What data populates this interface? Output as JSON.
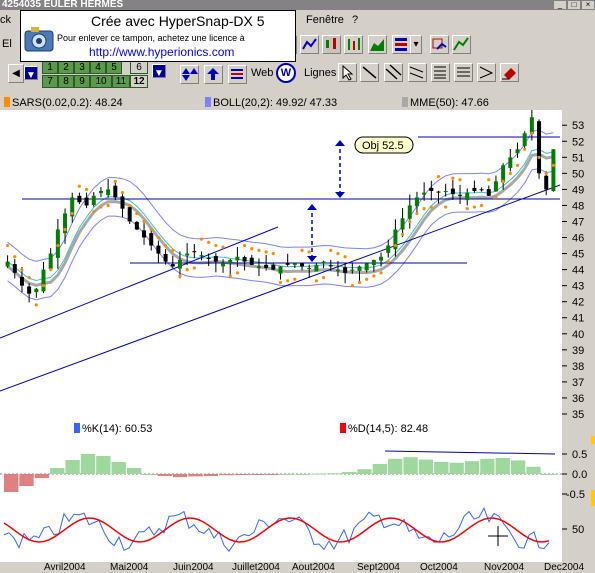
{
  "window": {
    "title": "4254035 EULER HERMES"
  },
  "menu": {
    "items": [
      "Fenêtre",
      "?"
    ],
    "left_fragment": "ck"
  },
  "watermark": {
    "line1": "Crée avec HyperSnap-DX 5",
    "line2": "Pour enlever ce tampon, achetez une licence à",
    "line3": "http://www.hyperionics.com"
  },
  "toolbar": {
    "numbers_top": [
      "1",
      "2",
      "3",
      "4",
      "5",
      "6"
    ],
    "numbers_bottom": [
      "7",
      "8",
      "9",
      "10",
      "11",
      "12"
    ],
    "web_label": "Web",
    "lignes_label": "Lignes",
    "left_fragment": "El"
  },
  "legends": {
    "sar": "SARS(0.02,0.2): 48.24",
    "boll": "BOLL(20,2): 49.92/ 47.33",
    "mme": "MME(50): 47.66",
    "k": "%K(14): 60.53",
    "d": "%D(14,5): 82.48"
  },
  "colors": {
    "sar": "#ff8c00",
    "boll": "#8080ff",
    "mme": "#a8a8a8",
    "k": "#3366ff",
    "d": "#ff0000",
    "candle_green": "#008000",
    "trend": "#0000c0"
  },
  "chart_data": {
    "type": "candlestick",
    "yticks": [
      "53",
      "52",
      "51",
      "50",
      "49",
      "48",
      "47",
      "46",
      "45",
      "44",
      "43",
      "42",
      "41",
      "40",
      "39",
      "38",
      "37",
      "36",
      "35"
    ],
    "ylim": [
      34.5,
      53.7
    ],
    "months": [
      "Avril2004",
      "Mai2004",
      "Juin2004",
      "Juillet2004",
      "Aout2004",
      "Sept2004",
      "Oct2004",
      "Nov2004",
      "Dec2004"
    ],
    "annotation": "Obj 52.5",
    "close": [
      44.5,
      43.8,
      43,
      42.5,
      42.8,
      44,
      45,
      46.5,
      47.5,
      48.5,
      48.2,
      48,
      48.6,
      48.9,
      49,
      48.5,
      47.8,
      47,
      46.5,
      46,
      45.5,
      45,
      44.5,
      44.2,
      44.6,
      45,
      45.1,
      44.9,
      44.7,
      44.5,
      44.4,
      44.6,
      44.8,
      44.5,
      44.3,
      44.2,
      44.1,
      44,
      44.2,
      44.3,
      44.4,
      44.2,
      44.1,
      44.3,
      44.5,
      44.2,
      44,
      43.8,
      44,
      44.2,
      44.4,
      44.6,
      44.8,
      45.5,
      46.5,
      47.2,
      48,
      48.5,
      48.8,
      48.9,
      48.8,
      48.9,
      48.7,
      48.6,
      48.8,
      48.9,
      49,
      48.6,
      49.5,
      50.5,
      51,
      51.5,
      52.5,
      53.5,
      50,
      49,
      51.5
    ],
    "macd": [
      -0.45,
      -0.3,
      -0.1,
      0.15,
      0.35,
      0.5,
      0.45,
      0.3,
      0.15,
      0.0,
      -0.05,
      -0.08,
      -0.06,
      -0.05,
      -0.03,
      -0.02,
      -0.02,
      -0.01,
      0.0,
      0.0,
      0.01,
      0.02,
      0.05,
      0.12,
      0.25,
      0.38,
      0.42,
      0.36,
      0.3,
      0.28,
      0.32,
      0.38,
      0.4,
      0.34,
      0.18,
      0.0
    ],
    "oscillator_levels": [
      "0.5",
      "0.0",
      "-0.5"
    ],
    "stoch_levels": [
      "50"
    ]
  }
}
